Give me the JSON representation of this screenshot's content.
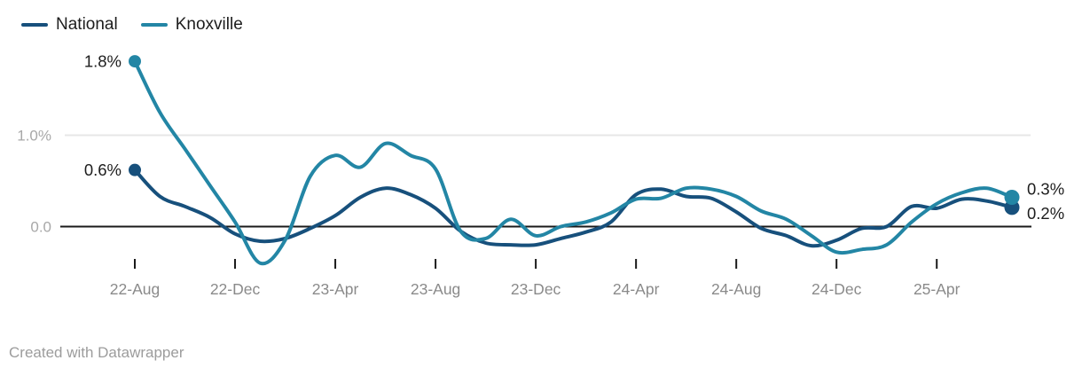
{
  "legend": {
    "items": [
      {
        "label": "National",
        "color": "#17507c"
      },
      {
        "label": "Knoxville",
        "color": "#2386a5"
      }
    ]
  },
  "chart_data": {
    "type": "line",
    "unit": "%",
    "x": [
      "2022-08",
      "2022-09",
      "2022-10",
      "2022-11",
      "2022-12",
      "2023-01",
      "2023-02",
      "2023-03",
      "2023-04",
      "2023-05",
      "2023-06",
      "2023-07",
      "2023-08",
      "2023-09",
      "2023-10",
      "2023-11",
      "2023-12",
      "2024-01",
      "2024-02",
      "2024-03",
      "2024-04",
      "2024-05",
      "2024-06",
      "2024-07",
      "2024-08",
      "2024-09",
      "2024-10",
      "2024-11",
      "2024-12",
      "2025-01",
      "2025-02",
      "2025-03",
      "2025-04",
      "2025-05",
      "2025-06",
      "2025-07"
    ],
    "series": [
      {
        "name": "National",
        "color": "#17507c",
        "start_label": "0.6%",
        "end_label": "0.2%",
        "values": [
          0.62,
          0.33,
          0.22,
          0.1,
          -0.08,
          -0.16,
          -0.13,
          -0.02,
          0.12,
          0.32,
          0.42,
          0.35,
          0.2,
          -0.05,
          -0.18,
          -0.2,
          -0.2,
          -0.13,
          -0.06,
          0.05,
          0.35,
          0.41,
          0.33,
          0.31,
          0.16,
          -0.02,
          -0.1,
          -0.21,
          -0.15,
          -0.02,
          0.0,
          0.22,
          0.2,
          0.3,
          0.28,
          0.21
        ]
      },
      {
        "name": "Knoxville",
        "color": "#2386a5",
        "start_label": "1.8%",
        "end_label": "0.3%",
        "values": [
          1.81,
          1.25,
          0.85,
          0.45,
          0.05,
          -0.4,
          -0.15,
          0.55,
          0.78,
          0.65,
          0.91,
          0.78,
          0.63,
          -0.05,
          -0.13,
          0.08,
          -0.1,
          0.0,
          0.05,
          0.15,
          0.3,
          0.31,
          0.42,
          0.41,
          0.33,
          0.17,
          0.08,
          -0.1,
          -0.28,
          -0.25,
          -0.2,
          0.05,
          0.25,
          0.37,
          0.42,
          0.32
        ]
      }
    ],
    "y_axis": {
      "ticks": [
        {
          "label": "1.0%",
          "value": 1.0
        },
        {
          "label": "0.0",
          "value": 0.0
        }
      ],
      "range": [
        -0.45,
        1.9
      ],
      "gridline_values": [
        1.0
      ],
      "zero_line": true
    },
    "x_axis": {
      "tick_indices": [
        0,
        4,
        8,
        12,
        16,
        20,
        24,
        28,
        32
      ],
      "tick_labels": [
        "22-Aug",
        "22-Dec",
        "23-Apr",
        "23-Aug",
        "23-Dec",
        "24-Apr",
        "24-Aug",
        "24-Dec",
        "25-Apr"
      ]
    },
    "legend_position": "top-left",
    "grid": "horizontal-only",
    "title": "",
    "xlabel": "",
    "ylabel": ""
  },
  "footer": {
    "text": "Created with Datawrapper"
  },
  "colors": {
    "text_dark": "#1d1d1d",
    "x_label_gray": "#8a8a8a",
    "y_label_gray": "#a8a8a8",
    "gridline": "#e7e7e7",
    "zero_line": "#1a1a1a",
    "background": "#ffffff"
  }
}
